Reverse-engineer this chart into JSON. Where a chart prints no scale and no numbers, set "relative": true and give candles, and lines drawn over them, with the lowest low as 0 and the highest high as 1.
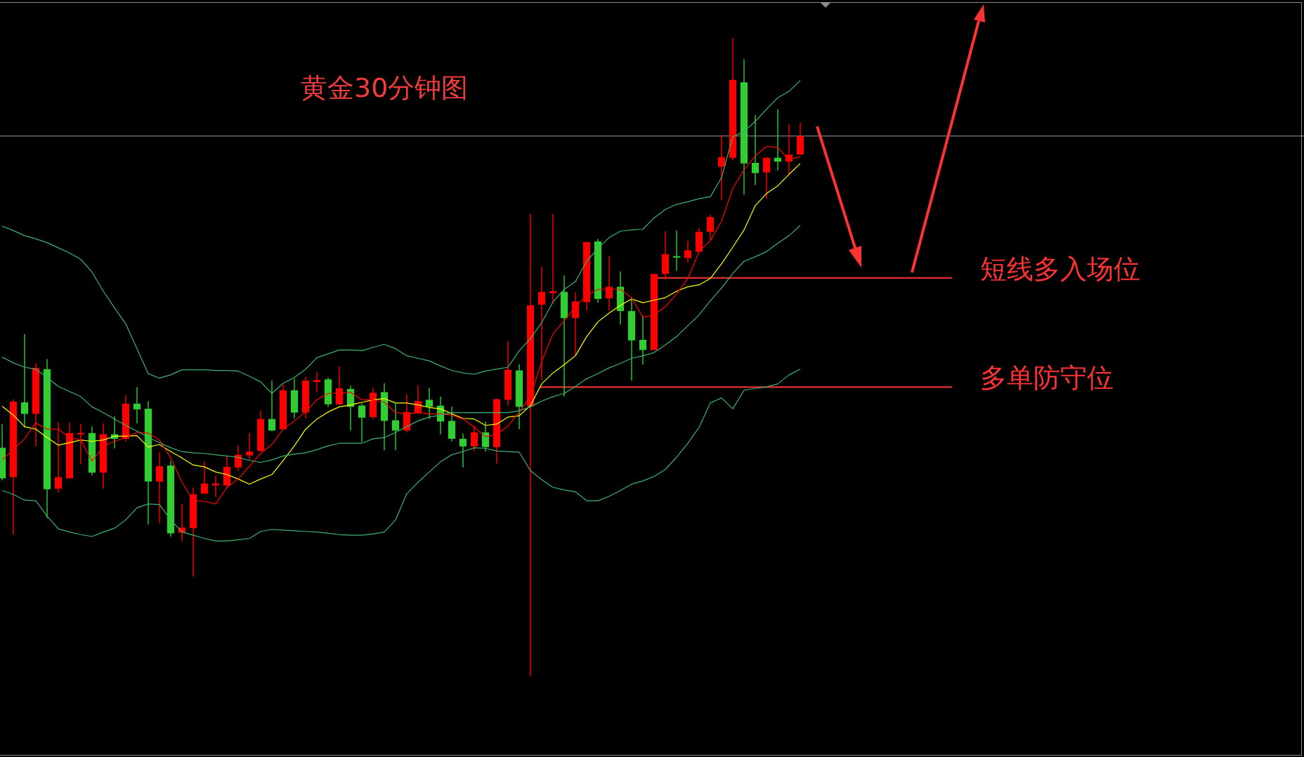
{
  "chart_data": {
    "type": "candlestick",
    "title": "黄金30分钟图",
    "relative": true,
    "legend": false,
    "marker": "none",
    "categories": [
      null,
      null,
      null,
      null,
      null,
      null,
      null,
      null,
      null,
      null,
      null,
      null,
      null,
      null,
      null,
      null,
      null,
      null,
      null,
      null,
      null,
      null,
      null,
      null,
      null,
      null,
      null,
      null,
      null,
      null,
      null,
      null,
      null,
      null,
      null,
      null,
      null,
      null,
      null,
      null,
      null,
      null,
      null,
      null,
      null,
      null,
      null,
      null,
      null,
      null,
      null,
      null,
      null,
      null,
      null,
      null,
      null,
      null,
      null,
      null,
      null,
      null,
      null,
      null,
      null,
      null,
      null,
      null,
      null,
      null,
      null,
      null
    ],
    "ohlc": [
      [
        0.358,
        0.395,
        0.307,
        0.31
      ],
      [
        0.312,
        0.434,
        0.222,
        0.43
      ],
      [
        0.429,
        0.536,
        0.39,
        0.411
      ],
      [
        0.411,
        0.49,
        0.36,
        0.483
      ],
      [
        0.481,
        0.497,
        0.248,
        0.293
      ],
      [
        0.294,
        0.398,
        0.288,
        0.312
      ],
      [
        0.31,
        0.398,
        0.31,
        0.381
      ],
      [
        0.379,
        0.395,
        0.332,
        0.381
      ],
      [
        0.381,
        0.391,
        0.315,
        0.319
      ],
      [
        0.319,
        0.396,
        0.294,
        0.379
      ],
      [
        0.379,
        0.407,
        0.357,
        0.372
      ],
      [
        0.372,
        0.44,
        0.368,
        0.427
      ],
      [
        0.427,
        0.453,
        0.396,
        0.418
      ],
      [
        0.419,
        0.431,
        0.238,
        0.305
      ],
      [
        0.305,
        0.351,
        0.24,
        0.329
      ],
      [
        0.33,
        0.337,
        0.219,
        0.224
      ],
      [
        0.225,
        0.27,
        0.212,
        0.233
      ],
      [
        0.232,
        0.296,
        0.156,
        0.285
      ],
      [
        0.286,
        0.336,
        0.286,
        0.302
      ],
      [
        0.299,
        0.314,
        0.281,
        0.302
      ],
      [
        0.299,
        0.345,
        0.294,
        0.328
      ],
      [
        0.327,
        0.361,
        0.322,
        0.347
      ],
      [
        0.346,
        0.381,
        0.339,
        0.352
      ],
      [
        0.353,
        0.416,
        0.352,
        0.403
      ],
      [
        0.403,
        0.463,
        0.384,
        0.385
      ],
      [
        0.387,
        0.457,
        0.387,
        0.448
      ],
      [
        0.448,
        0.466,
        0.404,
        0.413
      ],
      [
        0.413,
        0.469,
        0.404,
        0.463
      ],
      [
        0.461,
        0.476,
        0.445,
        0.464
      ],
      [
        0.465,
        0.468,
        0.422,
        0.426
      ],
      [
        0.426,
        0.485,
        0.424,
        0.451
      ],
      [
        0.45,
        0.455,
        0.385,
        0.422
      ],
      [
        0.424,
        0.427,
        0.367,
        0.405
      ],
      [
        0.406,
        0.452,
        0.403,
        0.444
      ],
      [
        0.445,
        0.459,
        0.354,
        0.4
      ],
      [
        0.401,
        0.427,
        0.354,
        0.385
      ],
      [
        0.385,
        0.441,
        0.382,
        0.414
      ],
      [
        0.412,
        0.456,
        0.412,
        0.431
      ],
      [
        0.433,
        0.452,
        0.403,
        0.422
      ],
      [
        0.424,
        0.438,
        0.379,
        0.399
      ],
      [
        0.4,
        0.422,
        0.368,
        0.372
      ],
      [
        0.372,
        0.38,
        0.327,
        0.36
      ],
      [
        0.36,
        0.393,
        0.353,
        0.382
      ],
      [
        0.382,
        0.399,
        0.352,
        0.359
      ],
      [
        0.359,
        0.435,
        0.333,
        0.434
      ],
      [
        0.433,
        0.525,
        0.424,
        0.48
      ],
      [
        0.479,
        0.489,
        0.387,
        0.422
      ],
      [
        0.423,
        0.724,
        0,
        0.581
      ],
      [
        0.582,
        0.641,
        0.464,
        0.602
      ],
      [
        0.6,
        0.724,
        0.584,
        0.603
      ],
      [
        0.602,
        0.628,
        0.438,
        0.561
      ],
      [
        0.561,
        0.601,
        0.502,
        0.587
      ],
      [
        0.586,
        0.68,
        0.573,
        0.68
      ],
      [
        0.681,
        0.685,
        0.585,
        0.591
      ],
      [
        0.592,
        0.658,
        0.573,
        0.61
      ],
      [
        0.61,
        0.634,
        0.551,
        0.572
      ],
      [
        0.572,
        0.592,
        0.463,
        0.526
      ],
      [
        0.527,
        0.565,
        0.488,
        0.511
      ],
      [
        0.511,
        0.63,
        0.511,
        0.63
      ],
      [
        0.63,
        0.697,
        0.621,
        0.661
      ],
      [
        0.658,
        0.698,
        0.635,
        0.656
      ],
      [
        0.655,
        0.682,
        0.648,
        0.667
      ],
      [
        0.665,
        0.702,
        0.663,
        0.696
      ],
      [
        0.696,
        0.723,
        0.684,
        0.719
      ],
      [
        0.798,
        0.848,
        0.746,
        0.813
      ],
      [
        0.812,
        1,
        0.808,
        0.934
      ],
      [
        0.93,
        0.966,
        0.754,
        0.803
      ],
      [
        0.804,
        0.879,
        0.769,
        0.788
      ],
      [
        0.789,
        0.813,
        0.748,
        0.812
      ],
      [
        0.812,
        0.888,
        0.792,
        0.806
      ],
      [
        0.806,
        0.864,
        0.786,
        0.817
      ],
      [
        0.817,
        0.867,
        0.817,
        0.846
      ]
    ],
    "colors": [
      "#32cd32",
      "#ff0000",
      "#32cd32",
      "#ff0000",
      "#32cd32",
      "#ff0000",
      "#ff0000",
      "#ff0000",
      "#32cd32",
      "#ff0000",
      "#32cd32",
      "#ff0000",
      "#32cd32",
      "#32cd32",
      "#ff0000",
      "#32cd32",
      "#ff0000",
      "#ff0000",
      "#ff0000",
      "#ff0000",
      "#ff0000",
      "#ff0000",
      "#ff0000",
      "#ff0000",
      "#32cd32",
      "#ff0000",
      "#32cd32",
      "#ff0000",
      "#ff0000",
      "#32cd32",
      "#ff0000",
      "#32cd32",
      "#32cd32",
      "#ff0000",
      "#32cd32",
      "#32cd32",
      "#ff0000",
      "#ff0000",
      "#32cd32",
      "#32cd32",
      "#32cd32",
      "#32cd32",
      "#ff0000",
      "#32cd32",
      "#ff0000",
      "#ff0000",
      "#32cd32",
      "#ff0000",
      "#ff0000",
      "#ff0000",
      "#32cd32",
      "#ff0000",
      "#ff0000",
      "#32cd32",
      "#ff0000",
      "#32cd32",
      "#32cd32",
      "#32cd32",
      "#ff0000",
      "#ff0000",
      "#32cd32",
      "#ff0000",
      "#ff0000",
      "#ff0000",
      "#ff0000",
      "#ff0000",
      "#32cd32",
      "#32cd32",
      "#ff0000",
      "#32cd32",
      "#ff0000",
      "#ff0000"
    ],
    "series": [
      {
        "type": "line",
        "color": "#3cb371",
        "values": [
          0.705,
          0.698,
          0.69,
          0.685,
          0.679,
          0.671,
          0.663,
          0.653,
          0.633,
          0.603,
          0.577,
          0.552,
          0.513,
          0.474,
          0.467,
          0.472,
          0.48,
          0.48,
          0.48,
          0.479,
          0.479,
          0.478,
          0.47,
          0.461,
          0.443,
          0.459,
          0.468,
          0.481,
          0.499,
          0.505,
          0.511,
          0.511,
          0.51,
          0.515,
          0.52,
          0.513,
          0.502,
          0.498,
          0.494,
          0.486,
          0.479,
          0.475,
          0.473,
          0.478,
          0.481,
          0.484,
          0.51,
          0.529,
          0.554,
          0.586,
          0.606,
          0.618,
          0.65,
          0.67,
          0.687,
          0.697,
          0.699,
          0.7,
          0.718,
          0.731,
          0.739,
          0.743,
          0.748,
          0.751,
          0.781,
          0.845,
          0.853,
          0.869,
          0.888,
          0.906,
          0.916,
          0.933
        ]
      },
      {
        "type": "line",
        "color": "#3cb371",
        "values": [
          0.5,
          0.491,
          0.484,
          0.481,
          0.468,
          0.454,
          0.446,
          0.438,
          0.422,
          0.413,
          0.403,
          0.393,
          0.384,
          0.374,
          0.366,
          0.358,
          0.352,
          0.35,
          0.349,
          0.347,
          0.345,
          0.343,
          0.338,
          0.335,
          0.339,
          0.345,
          0.348,
          0.35,
          0.355,
          0.361,
          0.365,
          0.365,
          0.365,
          0.372,
          0.374,
          0.382,
          0.391,
          0.4,
          0.406,
          0.409,
          0.413,
          0.413,
          0.413,
          0.413,
          0.413,
          0.413,
          0.416,
          0.422,
          0.431,
          0.438,
          0.443,
          0.454,
          0.466,
          0.474,
          0.483,
          0.49,
          0.498,
          0.502,
          0.507,
          0.519,
          0.532,
          0.549,
          0.566,
          0.588,
          0.608,
          0.631,
          0.65,
          0.657,
          0.665,
          0.678,
          0.69,
          0.706
        ]
      },
      {
        "type": "line",
        "color": "#3cb371",
        "values": [
          0.291,
          0.285,
          0.276,
          0.275,
          0.251,
          0.231,
          0.226,
          0.222,
          0.219,
          0.226,
          0.232,
          0.245,
          0.264,
          0.27,
          0.269,
          0.245,
          0.226,
          0.221,
          0.216,
          0.212,
          0.212,
          0.214,
          0.216,
          0.227,
          0.23,
          0.229,
          0.228,
          0.227,
          0.226,
          0.224,
          0.222,
          0.221,
          0.221,
          0.223,
          0.226,
          0.245,
          0.286,
          0.304,
          0.32,
          0.336,
          0.347,
          0.352,
          0.358,
          0.357,
          0.353,
          0.352,
          0.351,
          0.322,
          0.308,
          0.296,
          0.292,
          0.289,
          0.275,
          0.275,
          0.282,
          0.291,
          0.301,
          0.306,
          0.313,
          0.324,
          0.343,
          0.365,
          0.39,
          0.428,
          0.436,
          0.419,
          0.448,
          0.451,
          0.453,
          0.458,
          0.472,
          0.481
        ]
      },
      {
        "type": "line",
        "color": "#ff0000",
        "values": [
          0.339,
          0.355,
          0.372,
          0.397,
          0.387,
          0.387,
          0.374,
          0.37,
          0.337,
          0.36,
          0.368,
          0.374,
          0.382,
          0.381,
          0.37,
          0.342,
          0.304,
          0.275,
          0.274,
          0.27,
          0.296,
          0.309,
          0.329,
          0.349,
          0.363,
          0.387,
          0.4,
          0.414,
          0.433,
          0.443,
          0.443,
          0.445,
          0.433,
          0.433,
          0.429,
          0.413,
          0.411,
          0.413,
          0.411,
          0.411,
          0.409,
          0.403,
          0.39,
          0.375,
          0.379,
          0.392,
          0.414,
          0.438,
          0.493,
          0.536,
          0.557,
          0.579,
          0.596,
          0.606,
          0.606,
          0.606,
          0.593,
          0.562,
          0.566,
          0.579,
          0.599,
          0.623,
          0.665,
          0.682,
          0.713,
          0.764,
          0.793,
          0.815,
          0.83,
          0.828,
          0.809,
          0.814
        ]
      },
      {
        "type": "line",
        "color": "#ffff00",
        "values": [
          0.423,
          0.409,
          0.391,
          0.387,
          0.374,
          0.362,
          0.366,
          0.37,
          0.368,
          0.37,
          0.376,
          0.376,
          0.377,
          0.359,
          0.363,
          0.352,
          0.342,
          0.331,
          0.328,
          0.32,
          0.316,
          0.309,
          0.301,
          0.309,
          0.316,
          0.338,
          0.361,
          0.387,
          0.403,
          0.414,
          0.422,
          0.425,
          0.429,
          0.433,
          0.435,
          0.428,
          0.428,
          0.425,
          0.421,
          0.419,
          0.411,
          0.404,
          0.403,
          0.393,
          0.395,
          0.406,
          0.408,
          0.424,
          0.458,
          0.475,
          0.488,
          0.502,
          0.532,
          0.555,
          0.569,
          0.581,
          0.591,
          0.585,
          0.589,
          0.593,
          0.603,
          0.61,
          0.613,
          0.623,
          0.646,
          0.672,
          0.699,
          0.737,
          0.756,
          0.768,
          0.786,
          0.803
        ]
      }
    ],
    "ref_lines": [
      {
        "axis": "y",
        "value": 0.846,
        "color": "#8a96a8"
      },
      {
        "axis": "y",
        "value": 0.624,
        "label": "短线多入场位",
        "color": "#ff3333"
      },
      {
        "axis": "y",
        "value": 0.453,
        "label": "多单防守位",
        "color": "#ff3333"
      }
    ]
  }
}
